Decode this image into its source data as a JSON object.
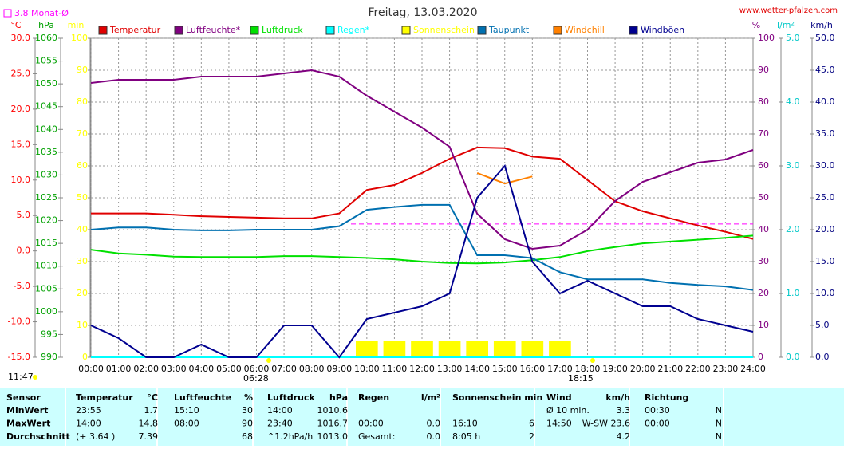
{
  "chart_data": {
    "type": "line",
    "title": "Freitag, 13.03.2020",
    "source": "www.wetter-pfalzen.com",
    "monthly_avg": 3.8,
    "monthly_avg_label": "3.8 Monat-Ø",
    "day_length": "11:47",
    "sunrise": "06:28",
    "sunset": "18:15",
    "xlim": [
      0,
      24
    ],
    "xticks": [
      {
        "value": 0,
        "label": "00:00"
      },
      {
        "value": 1,
        "label": "01:00"
      },
      {
        "value": 2,
        "label": "02:00"
      },
      {
        "value": 3,
        "label": "03:00"
      },
      {
        "value": 4,
        "label": "04:00"
      },
      {
        "value": 5,
        "label": "05:00"
      },
      {
        "value": 6,
        "label": "06:00"
      },
      {
        "value": 7,
        "label": "07:00"
      },
      {
        "value": 8,
        "label": "08:00"
      },
      {
        "value": 9,
        "label": "09:00"
      },
      {
        "value": 10,
        "label": "10:00"
      },
      {
        "value": 11,
        "label": "11:00"
      },
      {
        "value": 12,
        "label": "12:00"
      },
      {
        "value": 13,
        "label": "13:00"
      },
      {
        "value": 14,
        "label": "14:00"
      },
      {
        "value": 15,
        "label": "15:00"
      },
      {
        "value": 16,
        "label": "16:00"
      },
      {
        "value": 17,
        "label": "17:00"
      },
      {
        "value": 18,
        "label": "18:00"
      },
      {
        "value": 19,
        "label": "19:00"
      },
      {
        "value": 20,
        "label": "20:00"
      },
      {
        "value": 21,
        "label": "21:00"
      },
      {
        "value": 22,
        "label": "22:00"
      },
      {
        "value": 23,
        "label": "23:00"
      },
      {
        "value": 24,
        "label": "24:00"
      }
    ],
    "axes": [
      {
        "label": "°C",
        "side": "left",
        "color": "#ff0000",
        "lim": [
          -15,
          30
        ],
        "ticks": [
          {
            "value": -15,
            "label": "-15.0"
          },
          {
            "value": -10,
            "label": "-10.0"
          },
          {
            "value": -5,
            "label": "-5.0"
          },
          {
            "value": 0,
            "label": "0.0"
          },
          {
            "value": 5,
            "label": "5.0"
          },
          {
            "value": 10,
            "label": "10.0"
          },
          {
            "value": 15,
            "label": "15.0"
          },
          {
            "value": 20,
            "label": "20.0"
          },
          {
            "value": 25,
            "label": "25.0"
          },
          {
            "value": 30,
            "label": "30.0"
          }
        ]
      },
      {
        "label": "hPa",
        "side": "left",
        "color": "#00a000",
        "lim": [
          990,
          1060
        ],
        "ticks": [
          990,
          995,
          1000,
          1005,
          1010,
          1015,
          1020,
          1025,
          1030,
          1035,
          1040,
          1045,
          1050,
          1055,
          1060
        ]
      },
      {
        "label": "min",
        "side": "left",
        "color": "#ffff00",
        "lim": [
          0,
          100
        ],
        "ticks": [
          0,
          10,
          20,
          30,
          40,
          50,
          60,
          70,
          80,
          90,
          100
        ]
      },
      {
        "label": "%",
        "side": "right",
        "color": "#800080",
        "lim": [
          0,
          100
        ],
        "grid": true,
        "ticks": [
          0,
          10,
          20,
          30,
          40,
          50,
          60,
          70,
          80,
          90,
          100
        ]
      },
      {
        "label": "l/m²",
        "side": "right",
        "color": "#00c8c8",
        "lim": [
          0,
          5
        ],
        "ticks": [
          {
            "value": 0,
            "label": "0.0"
          },
          {
            "value": 1,
            "label": "1.0"
          },
          {
            "value": 2,
            "label": "2.0"
          },
          {
            "value": 3,
            "label": "3.0"
          },
          {
            "value": 4,
            "label": "4.0"
          },
          {
            "value": 5,
            "label": "5.0"
          }
        ]
      },
      {
        "label": "km/h",
        "side": "right",
        "color": "#000080",
        "lim": [
          0,
          50
        ],
        "ticks": [
          {
            "value": 0,
            "label": "0.0"
          },
          {
            "value": 5,
            "label": "5.0"
          },
          {
            "value": 10,
            "label": "10.0"
          },
          {
            "value": 15,
            "label": "15.0"
          },
          {
            "value": 20,
            "label": "20.0"
          },
          {
            "value": 25,
            "label": "25.0"
          },
          {
            "value": 30,
            "label": "30.0"
          },
          {
            "value": 35,
            "label": "35.0"
          },
          {
            "value": 40,
            "label": "40.0"
          },
          {
            "value": 45,
            "label": "45.0"
          },
          {
            "value": 50,
            "label": "50.0"
          }
        ]
      }
    ],
    "x": [
      0,
      1,
      2,
      3,
      4,
      5,
      6,
      7,
      8,
      9,
      10,
      11,
      12,
      13,
      14,
      15,
      16,
      17,
      18,
      19,
      20,
      21,
      22,
      23,
      24
    ],
    "series": [
      {
        "name": "Temperatur",
        "color": "#e00000",
        "axis": "°C",
        "kind": "line",
        "values": [
          5.3,
          5.3,
          5.3,
          5.1,
          4.9,
          4.8,
          4.7,
          4.6,
          4.6,
          5.3,
          8.6,
          9.3,
          11.0,
          13.0,
          14.6,
          14.5,
          13.3,
          13.0,
          10.0,
          7.0,
          5.6,
          4.6,
          3.6,
          2.7,
          1.7
        ]
      },
      {
        "name": "Luftfeuchte*",
        "color": "#800080",
        "axis": "%",
        "kind": "line",
        "values": [
          86,
          87,
          87,
          87,
          88,
          88,
          88,
          89,
          90,
          88,
          82,
          77,
          72,
          66,
          45,
          37,
          34,
          35,
          40,
          49,
          55,
          58,
          61,
          62,
          65
        ]
      },
      {
        "name": "Luftdruck",
        "color": "#00e000",
        "axis": "hPa",
        "kind": "line",
        "values": [
          1013.6,
          1012.8,
          1012.5,
          1012.1,
          1012.0,
          1012.0,
          1012.0,
          1012.2,
          1012.2,
          1012.0,
          1011.8,
          1011.5,
          1011.0,
          1010.7,
          1010.6,
          1010.8,
          1011.3,
          1012.0,
          1013.3,
          1014.2,
          1015.0,
          1015.4,
          1015.8,
          1016.2,
          1016.7
        ]
      },
      {
        "name": "Regen*",
        "color": "#00ffff",
        "axis": "l/m²",
        "kind": "line",
        "values": [
          0,
          0,
          0,
          0,
          0,
          0,
          0,
          0,
          0,
          0,
          0,
          0,
          0,
          0,
          0,
          0,
          0,
          0,
          0,
          0,
          0,
          0,
          0,
          0,
          0
        ]
      },
      {
        "name": "Sonnenschein",
        "color": "#ffff00",
        "axis": "min",
        "kind": "bar",
        "values": [
          0,
          0,
          0,
          0,
          0,
          0,
          0,
          0,
          0,
          0,
          5,
          5,
          5,
          5,
          5,
          5,
          5,
          5,
          0,
          0,
          0,
          0,
          0,
          0,
          0
        ]
      },
      {
        "name": "Taupunkt",
        "color": "#0070b0",
        "axis": "°C",
        "kind": "line",
        "values": [
          3.0,
          3.3,
          3.3,
          3.0,
          2.9,
          2.9,
          3.0,
          3.0,
          3.0,
          3.5,
          5.8,
          6.2,
          6.5,
          6.5,
          -0.6,
          -0.6,
          -1.0,
          -3.0,
          -4.0,
          -4.0,
          -4.0,
          -4.5,
          -4.8,
          -5.0,
          -5.5
        ]
      },
      {
        "name": "Windchill",
        "color": "#ff8000",
        "axis": "°C",
        "kind": "line",
        "values": [
          null,
          null,
          null,
          null,
          null,
          null,
          null,
          null,
          null,
          null,
          null,
          null,
          null,
          null,
          11.0,
          9.5,
          10.5,
          null,
          null,
          null,
          null,
          null,
          null,
          null,
          null
        ]
      },
      {
        "name": "Windböen",
        "color": "#000090",
        "axis": "km/h",
        "kind": "line",
        "values": [
          5,
          3,
          0,
          0,
          2,
          0,
          0,
          5,
          5,
          0,
          6,
          7,
          8,
          10,
          25,
          30,
          15,
          10,
          12,
          10,
          8,
          8,
          6,
          5,
          4
        ]
      }
    ]
  },
  "table": {
    "header": [
      "Sensor",
      "Temperatur",
      "°C",
      "Luftfeuchte",
      "%",
      "Luftdruck",
      "hPa",
      "Regen",
      "l/m²",
      "Sonnenschein min",
      null,
      "Wind",
      "km/h",
      "Richtung",
      null
    ],
    "rows": [
      [
        "MinWert",
        "23:55",
        "1.7",
        "15:10",
        "30",
        "14:00",
        "1010.6",
        null,
        null,
        null,
        null,
        "Ø 10 min.",
        "3.3",
        "00:30",
        "N"
      ],
      [
        "MaxWert",
        "14:00",
        "14.8",
        "08:00",
        "90",
        "23:40",
        "1016.7",
        "00:00",
        "0.0",
        "16:10",
        "6",
        "14:50",
        "W-SW 23.6",
        "00:00",
        "N"
      ],
      [
        "Durchschnitt",
        "(+ 3.64 )",
        "7.39",
        null,
        "68",
        "^1.2hPa/h",
        "1013.0",
        "Gesamt:",
        "0.0",
        "8:05 h",
        "2",
        null,
        "4.2",
        null,
        "N"
      ]
    ]
  }
}
